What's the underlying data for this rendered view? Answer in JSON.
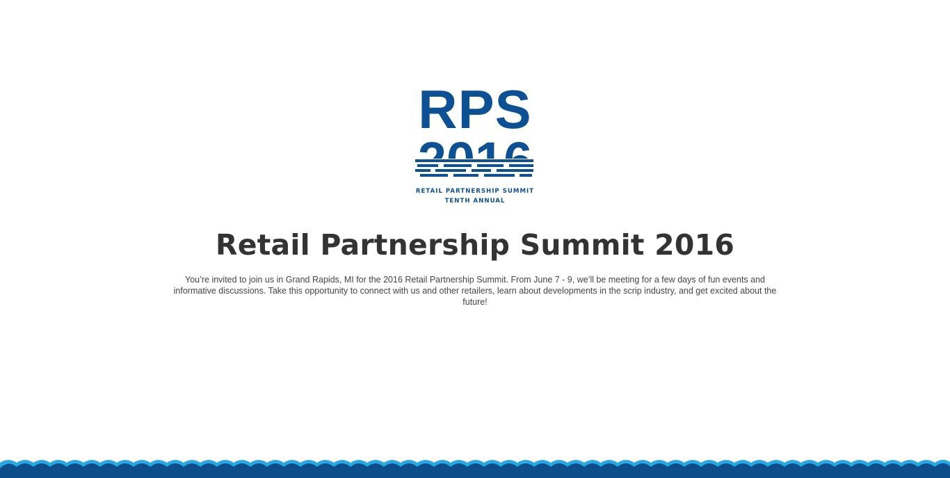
{
  "logo": {
    "top_text": "RPS",
    "year_text": "2016",
    "line1": "RETAIL PARTNERSHIP SUMMIT",
    "line2": "TENTH ANNUAL",
    "color": "#0d5194"
  },
  "page": {
    "title": "Retail Partnership Summit 2016",
    "intro": "You’re invited to join us in Grand Rapids, MI for the 2016 Retail Partnership Summit. From June 7 - 9, we’ll be meeting for a few days of fun events and informative discussions. Take this opportunity to connect with us and other retailers, learn about developments in the scrip industry, and get excited about the future!"
  },
  "footer": {
    "wave_light_color": "#29a9e1",
    "wave_dark_color": "#0d4d8a"
  }
}
